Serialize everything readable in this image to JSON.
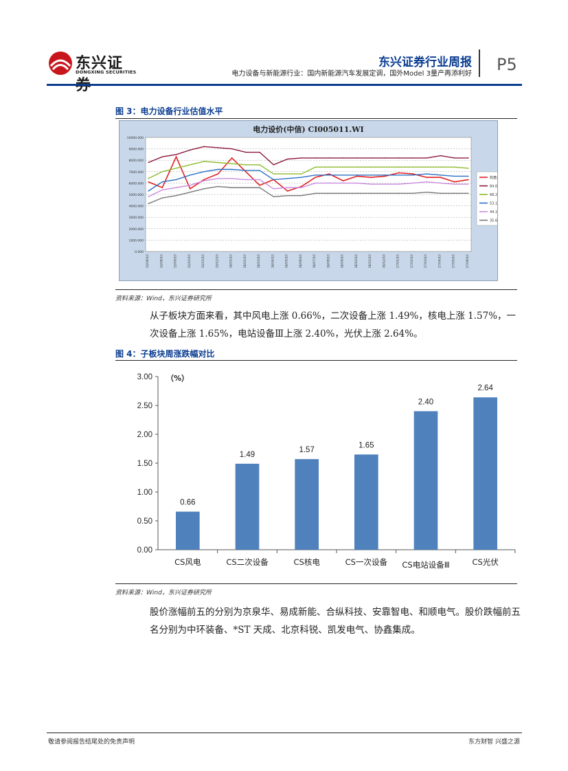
{
  "header": {
    "logo_cn": "东兴证券",
    "logo_en": "DONGXING SECURITIES",
    "brand_title": "东兴证券行业周报",
    "report_subtitle": "电力设备与新能源行业：国内新能源汽车发展定调，国外Model 3量产再添利好",
    "page_number": "P5"
  },
  "figure3": {
    "caption": "图 3：电力设备行业估值水平",
    "source": "资料来源：Wind，东兴证券研究所",
    "chart_data": {
      "type": "line",
      "title": "电力设价(中信) CI005011.WI",
      "ylim": [
        0,
        10000
      ],
      "y_tick_labels": [
        "0.000",
        "1000.000",
        "2000.000",
        "3000.000",
        "4000.000",
        "5000.000",
        "6000.000",
        "7000.000",
        "8000.000",
        "9000.000",
        "10000.000"
      ],
      "x_tick_labels": [
        "15/06/10",
        "15/08/10",
        "15/09/10",
        "15/10/10",
        "15/11/10",
        "15/12/10",
        "16/01/10",
        "16/02/10",
        "16/03/10",
        "16/04/10",
        "16/05/10",
        "16/06/10",
        "16/07/10",
        "16/08/10",
        "16/09/10",
        "16/10/10",
        "16/11/10",
        "16/12/10",
        "17/01/10",
        "17/02/10",
        "17/03/10",
        "17/04/10",
        "17/05/10",
        "17/06/10"
      ],
      "legend_labels": [
        "收盘价",
        "84.60",
        "68.20",
        "53.10",
        "44.10",
        "35.60"
      ],
      "grid": true,
      "series": [
        {
          "name": "收盘价",
          "color": "#e0201f",
          "values": [
            6100,
            5600,
            8300,
            5500,
            6300,
            6800,
            8200,
            7000,
            5800,
            6300,
            5300,
            5700,
            6500,
            6800,
            6200,
            6600,
            6500,
            6600,
            6900,
            6800,
            6500,
            6500,
            6100,
            6300
          ]
        },
        {
          "name": "84.60",
          "color": "#8b1a3a",
          "values": [
            7800,
            8300,
            8500,
            8900,
            9200,
            9100,
            9000,
            8700,
            8700,
            7600,
            8100,
            8200,
            8200,
            8200,
            8200,
            8200,
            8200,
            8200,
            8200,
            8200,
            8200,
            8400,
            8200,
            8200
          ]
        },
        {
          "name": "68.20",
          "color": "#8dbb2a",
          "values": [
            6400,
            7000,
            7300,
            7600,
            7900,
            7800,
            7700,
            7600,
            7600,
            6800,
            6800,
            6800,
            7400,
            7400,
            7400,
            7400,
            7400,
            7400,
            7400,
            7400,
            7400,
            7400,
            7400,
            7300
          ]
        },
        {
          "name": "53.10",
          "color": "#2a6fc4",
          "values": [
            5300,
            6100,
            6300,
            6700,
            7000,
            7200,
            7200,
            7100,
            7100,
            6300,
            6400,
            6500,
            6700,
            6700,
            6700,
            6700,
            6700,
            6700,
            6700,
            6700,
            6800,
            6700,
            6600,
            6600
          ]
        },
        {
          "name": "44.10",
          "color": "#c98ae0",
          "values": [
            4800,
            5400,
            5600,
            5800,
            6200,
            6400,
            6400,
            6300,
            6300,
            5500,
            5600,
            5600,
            6000,
            6000,
            6000,
            6000,
            5900,
            5900,
            5900,
            6000,
            6100,
            6000,
            5900,
            5900
          ]
        },
        {
          "name": "35.60",
          "color": "#777777",
          "values": [
            4200,
            4700,
            4900,
            5200,
            5500,
            5700,
            5600,
            5600,
            5600,
            4800,
            4900,
            4900,
            5100,
            5100,
            5100,
            5100,
            5100,
            5100,
            5100,
            5100,
            5200,
            5100,
            5100,
            5100
          ]
        }
      ]
    }
  },
  "paragraph1": "从子板块方面来看，其中风电上涨 0.66%，二次设备上涨 1.49%，核电上涨 1.57%，一次设备上涨 1.65%，电站设备Ⅲ上涨 2.40%，光伏上涨 2.64%。",
  "figure4": {
    "caption": "图 4：子板块周涨跌幅对比",
    "source": "资料来源：Wind，东兴证券研究所",
    "chart_data": {
      "type": "bar",
      "ylabel": "（%）",
      "ylim": [
        0,
        3.0
      ],
      "y_tick_labels": [
        "0.00",
        "0.50",
        "1.00",
        "1.50",
        "2.00",
        "2.50",
        "3.00"
      ],
      "categories": [
        "CS风电",
        "CS二次设备",
        "CS核电",
        "CS一次设备",
        "CS电站设备Ⅲ",
        "CS光伏"
      ],
      "values": [
        0.66,
        1.49,
        1.57,
        1.65,
        2.4,
        2.64
      ],
      "value_labels": [
        "0.66",
        "1.49",
        "1.57",
        "1.65",
        "2.40",
        "2.64"
      ],
      "bar_color": "#4f81bd",
      "grid": false
    }
  },
  "paragraph2": "股价涨幅前五的分别为京泉华、易成新能、合纵科技、安靠智电、和顺电气。股价跌幅前五名分别为中环装备、*ST 天成、北京科锐、凯发电气、协鑫集成。",
  "footer": {
    "left": "敬请参阅报告结尾处的免责声明",
    "right": "东方财智 兴盛之源"
  }
}
